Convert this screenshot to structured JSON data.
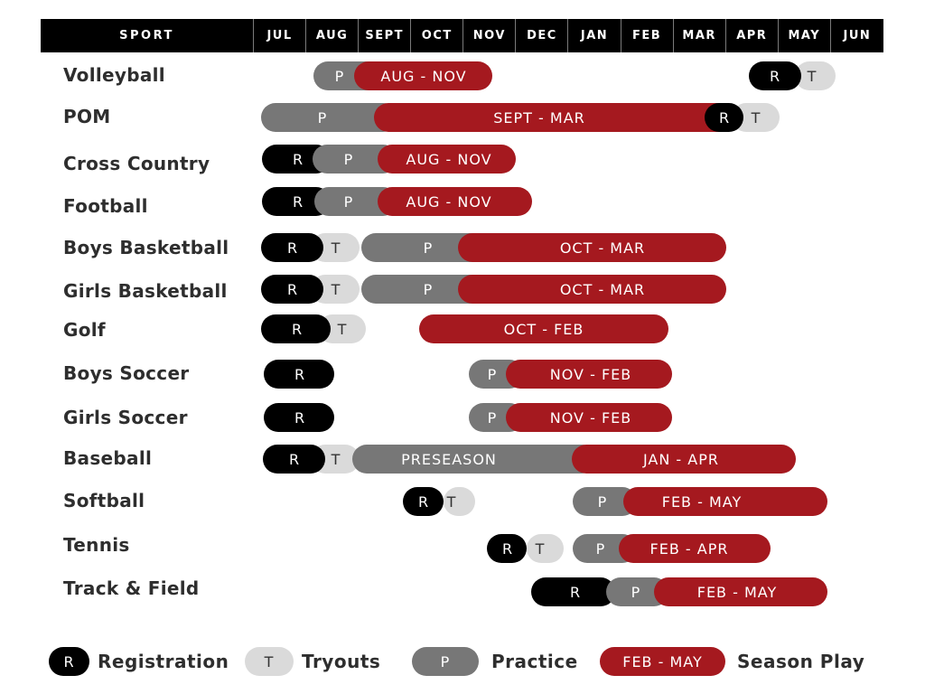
{
  "header": {
    "sport_label": "SPORT",
    "months": [
      "JUL",
      "AUG",
      "SEPT",
      "OCT",
      "NOV",
      "DEC",
      "JAN",
      "FEB",
      "MAR",
      "APR",
      "MAY",
      "JUN"
    ]
  },
  "colors": {
    "registration": "#000000",
    "tryouts": "#dadada",
    "practice": "#777777",
    "season": "#a5191f",
    "header_bg": "#000000"
  },
  "rows": [
    {
      "sport": "Volleyball",
      "segments": [
        {
          "type": "P",
          "label": "P"
        },
        {
          "type": "S",
          "label": "AUG - NOV"
        },
        {
          "type": "T",
          "label": "T"
        },
        {
          "type": "R",
          "label": "R"
        }
      ]
    },
    {
      "sport": "POM",
      "segments": [
        {
          "type": "P",
          "label": "P"
        },
        {
          "type": "T",
          "label": "T"
        },
        {
          "type": "S",
          "label": "SEPT - MAR"
        },
        {
          "type": "R",
          "label": "R"
        }
      ]
    },
    {
      "sport": "Cross Country",
      "segments": [
        {
          "type": "R",
          "label": "R"
        },
        {
          "type": "P",
          "label": "P"
        },
        {
          "type": "S",
          "label": "AUG - NOV"
        }
      ]
    },
    {
      "sport": "Football",
      "segments": [
        {
          "type": "R",
          "label": "R"
        },
        {
          "type": "P",
          "label": "P"
        },
        {
          "type": "S",
          "label": "AUG - NOV"
        }
      ]
    },
    {
      "sport": "Boys Basketball",
      "segments": [
        {
          "type": "T",
          "label": "T"
        },
        {
          "type": "R",
          "label": "R"
        },
        {
          "type": "P",
          "label": "P"
        },
        {
          "type": "S",
          "label": "OCT - MAR"
        }
      ]
    },
    {
      "sport": "Girls Basketball",
      "segments": [
        {
          "type": "T",
          "label": "T"
        },
        {
          "type": "R",
          "label": "R"
        },
        {
          "type": "P",
          "label": "P"
        },
        {
          "type": "S",
          "label": "OCT - MAR"
        }
      ]
    },
    {
      "sport": "Golf",
      "segments": [
        {
          "type": "T",
          "label": "T"
        },
        {
          "type": "R",
          "label": "R"
        },
        {
          "type": "S",
          "label": "OCT - FEB"
        }
      ]
    },
    {
      "sport": "Boys Soccer",
      "segments": [
        {
          "type": "R",
          "label": "R"
        },
        {
          "type": "P",
          "label": "P"
        },
        {
          "type": "S",
          "label": "NOV - FEB"
        }
      ]
    },
    {
      "sport": "Girls Soccer",
      "segments": [
        {
          "type": "R",
          "label": "R"
        },
        {
          "type": "P",
          "label": "P"
        },
        {
          "type": "S",
          "label": "NOV - FEB"
        }
      ]
    },
    {
      "sport": "Baseball",
      "segments": [
        {
          "type": "T",
          "label": "T"
        },
        {
          "type": "R",
          "label": "R"
        },
        {
          "type": "P",
          "label": "PRESEASON"
        },
        {
          "type": "S",
          "label": "JAN - APR"
        }
      ]
    },
    {
      "sport": "Softball",
      "segments": [
        {
          "type": "T",
          "label": "T"
        },
        {
          "type": "R",
          "label": "R"
        },
        {
          "type": "P",
          "label": "P"
        },
        {
          "type": "S",
          "label": "FEB - MAY"
        }
      ]
    },
    {
      "sport": "Tennis",
      "segments": [
        {
          "type": "T",
          "label": "T"
        },
        {
          "type": "R",
          "label": "R"
        },
        {
          "type": "P",
          "label": "P"
        },
        {
          "type": "S",
          "label": "FEB - APR"
        }
      ]
    },
    {
      "sport": "Track & Field",
      "segments": [
        {
          "type": "R",
          "label": "R"
        },
        {
          "type": "P",
          "label": "P"
        },
        {
          "type": "S",
          "label": "FEB - MAY"
        }
      ]
    }
  ],
  "legend": [
    {
      "type": "R",
      "pill": "R",
      "text": "Registration"
    },
    {
      "type": "T",
      "pill": "T",
      "text": "Tryouts"
    },
    {
      "type": "P",
      "pill": "P",
      "text": "Practice"
    },
    {
      "type": "S",
      "pill": "FEB - MAY",
      "text": "Season Play"
    }
  ]
}
